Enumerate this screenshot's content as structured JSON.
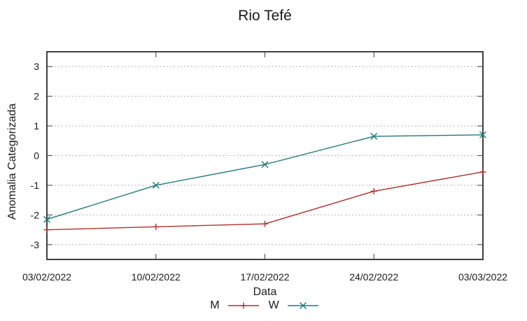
{
  "title": "Rio Tefé",
  "colors": {
    "border": "#3f3f3f",
    "grid": "#b4b4b4",
    "text": "#1a1a1a",
    "series_m": "#b1302a",
    "series_w": "#1f7a78"
  },
  "chart_data": {
    "type": "line",
    "title": "Rio Tefé",
    "xlabel": "Data",
    "ylabel": "Anomalia Categorizada",
    "categories": [
      "03/02/2022",
      "10/02/2022",
      "17/02/2022",
      "24/02/2022",
      "03/03/2022"
    ],
    "yticks": [
      3,
      2,
      1,
      0,
      -1,
      -2,
      -3
    ],
    "ylim": [
      -3.5,
      3.5
    ],
    "grid": true,
    "grid_style": "dotted",
    "legend_position": "bottom-center",
    "series": [
      {
        "name": "M",
        "color": "#b1302a",
        "marker": "plus",
        "values": [
          -2.5,
          -2.4,
          -2.3,
          -1.2,
          -0.55
        ]
      },
      {
        "name": "W",
        "color": "#1f7a78",
        "marker": "cross",
        "values": [
          -2.15,
          -1.0,
          -0.3,
          0.65,
          0.7
        ]
      }
    ]
  }
}
